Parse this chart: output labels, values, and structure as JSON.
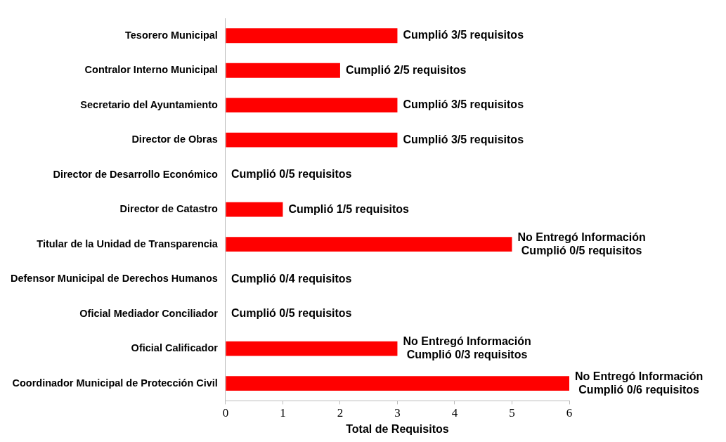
{
  "chart_data": {
    "type": "bar",
    "orientation": "horizontal",
    "xlabel": "Total de Requisitos",
    "color": "#ff0000",
    "categories": [
      "Tesorero Municipal",
      "Contralor Interno Municipal",
      "Secretario del Ayuntamiento",
      "Director de Obras",
      "Director de Desarrollo Económico",
      "Director de Catastro",
      "Titular de la Unidad de Transparencia",
      "Defensor Municipal de Derechos Humanos",
      "Oficial Mediador Conciliador",
      "Oficial Calificador",
      "Coordinador Municipal de Protección Civil"
    ],
    "values": [
      3,
      2,
      3,
      3,
      0,
      1,
      5,
      0,
      0,
      3,
      6
    ],
    "value_labels": [
      "Cumplió 3/5 requisitos",
      "Cumplió 2/5 requisitos",
      "Cumplió 3/5 requisitos",
      "Cumplió 3/5 requisitos",
      "Cumplió 0/5 requisitos",
      "Cumplió 1/5 requisitos",
      "No Entregó Información\nCumplió 0/5 requisitos",
      "Cumplió 0/4 requisitos",
      "Cumplió 0/5 requisitos",
      "No Entregó Información\nCumplió 0/3 requisitos",
      "No Entregó Información\nCumplió 0/6 requisitos"
    ],
    "xlim": [
      0,
      6
    ],
    "xticks": [
      0,
      1,
      2,
      3,
      4,
      5,
      6
    ]
  }
}
